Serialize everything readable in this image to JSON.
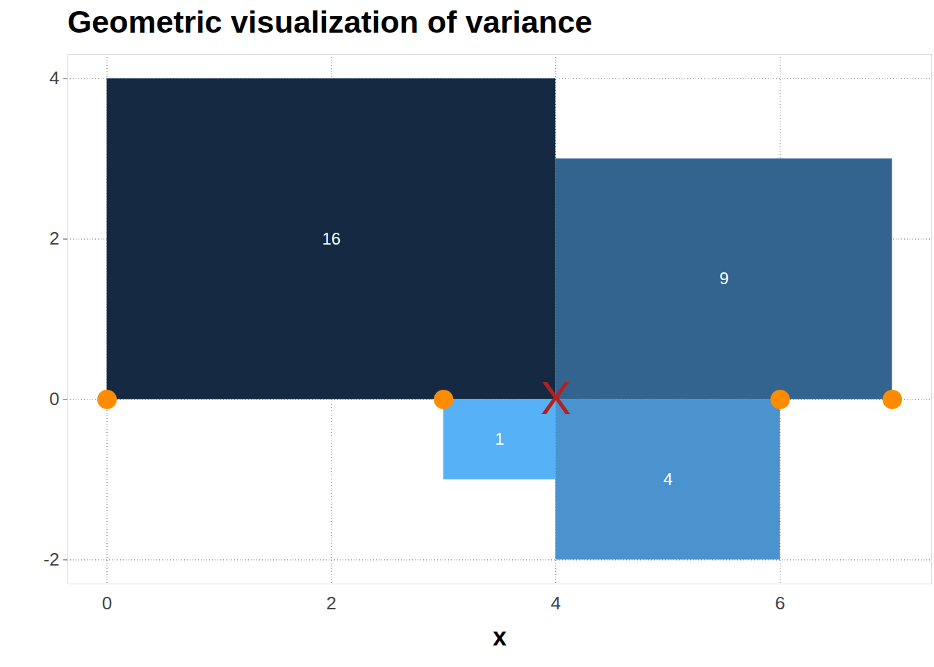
{
  "chart_data": {
    "type": "rect",
    "title": "Geometric visualization of variance",
    "x_label": "x",
    "xlim": [
      -0.35,
      7.35
    ],
    "xticks": [
      0,
      2,
      4,
      6
    ],
    "ylim": [
      -2.3,
      4.3
    ],
    "yticks": [
      -2,
      0,
      2,
      4
    ],
    "grid": true,
    "data_labels": true,
    "squares": [
      {
        "x0": 0,
        "x1": 4,
        "y0": 0,
        "y1": 4,
        "value": 16,
        "color": "#152a42"
      },
      {
        "x0": 3,
        "x1": 4,
        "y0": 0,
        "y1": -1,
        "value": 1,
        "color": "#56b1f7"
      },
      {
        "x0": 4,
        "x1": 6,
        "y0": 0,
        "y1": -2,
        "value": 4,
        "color": "#4a93cf"
      },
      {
        "x0": 4,
        "x1": 7,
        "y0": 0,
        "y1": 3,
        "value": 9,
        "color": "#32648f"
      }
    ],
    "points": {
      "x": [
        0,
        3,
        6,
        7
      ],
      "y": [
        0,
        0,
        0,
        0
      ],
      "color": "#ff8c00",
      "marker": "circle"
    },
    "mean": {
      "x": 4,
      "y": 0,
      "label": "X",
      "color": "#b22222"
    }
  }
}
